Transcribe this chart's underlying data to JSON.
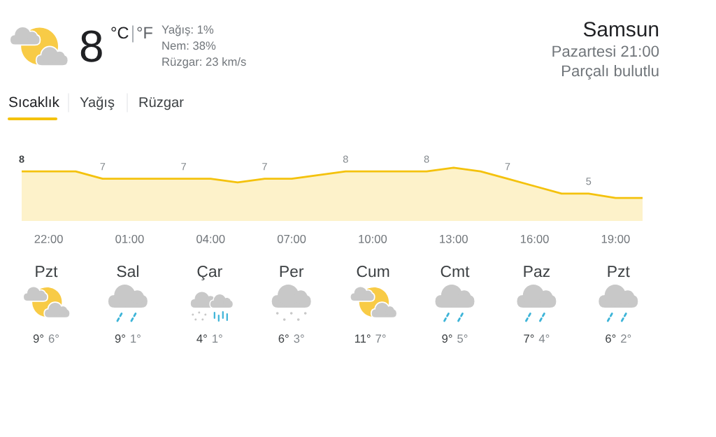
{
  "chart_data": [
    {
      "type": "other",
      "annotations": [
        "8",
        "°C",
        "°F",
        "Yağış: 1%",
        "Nem: 38%",
        "Rüzgar: 23 km/s",
        "Samsun",
        "Pazartesi 21:00",
        "Parçalı bulutlu",
        "Sıcaklık",
        "Yağış",
        "Rüzgar"
      ]
    },
    {
      "type": "area",
      "categories": [
        null,
        "22:00",
        null,
        null,
        "01:00",
        null,
        null,
        "04:00",
        null,
        null,
        "07:00",
        null,
        null,
        "10:00",
        null,
        null,
        "13:00",
        null,
        null,
        "16:00",
        null,
        null,
        "19:00",
        null
      ],
      "values": [
        8,
        8,
        8,
        7,
        7,
        7,
        7,
        7,
        6.5,
        7,
        7,
        7.5,
        8,
        8,
        8,
        8,
        8.5,
        8,
        7,
        6,
        5,
        5,
        4.4,
        4.4
      ],
      "value_labels": [
        "8",
        null,
        null,
        "7",
        null,
        null,
        "7",
        null,
        null,
        "7",
        null,
        null,
        "8",
        null,
        null,
        "8",
        null,
        null,
        "7",
        null,
        null,
        "5",
        null,
        null
      ],
      "color": "#f4c20d",
      "tick_labels": "x"
    },
    {
      "type": "other",
      "categories": [
        "Pzt",
        "Sal",
        "Çar",
        "Per",
        "Cum",
        "Cmt",
        "Paz",
        "Pzt"
      ],
      "series": [
        {
          "color": "#3c4043",
          "values": [
            9,
            9,
            4,
            6,
            11,
            9,
            7,
            6
          ],
          "value_labels": [
            "9°",
            "9°",
            "4°",
            "6°",
            "11°",
            "9°",
            "7°",
            "6°"
          ]
        },
        {
          "color": "#80868b",
          "values": [
            6,
            1,
            1,
            3,
            7,
            5,
            4,
            2
          ],
          "value_labels": [
            "6°",
            "1°",
            "1°",
            "3°",
            "7°",
            "5°",
            "4°",
            "2°"
          ]
        }
      ]
    }
  ]
}
